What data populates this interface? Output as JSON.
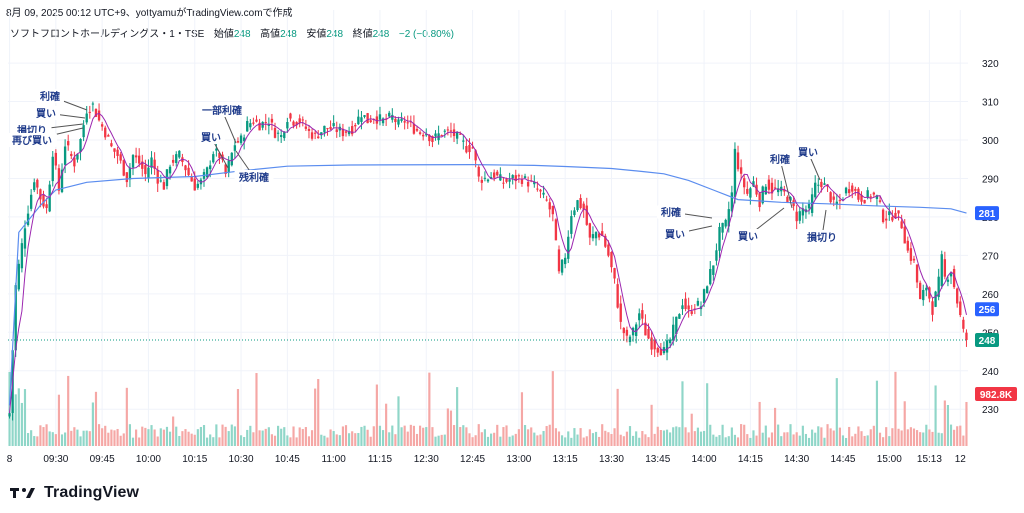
{
  "header": {
    "caption": "8月 09, 2025 00:12 UTC+9、yottyamuがTradingView.comで作成"
  },
  "legend": {
    "symbol": "ソフトフロントホールディングス・1・TSE",
    "open_label": "始値",
    "open": "248",
    "high_label": "高値",
    "high": "248",
    "low_label": "安値",
    "low": "248",
    "close_label": "終値",
    "close": "248",
    "change": "−2 (−0.80%)"
  },
  "brand": {
    "name": "TradingView"
  },
  "chart_data": {
    "type": "candlestick",
    "ylim": [
      222,
      326
    ],
    "y_ticks": [
      230,
      240,
      250,
      260,
      270,
      280,
      290,
      300,
      310,
      320
    ],
    "x_ticks": [
      {
        "i": 0,
        "label": "8"
      },
      {
        "i": 15,
        "label": "09:30"
      },
      {
        "i": 30,
        "label": "09:45"
      },
      {
        "i": 45,
        "label": "10:00"
      },
      {
        "i": 60,
        "label": "10:15"
      },
      {
        "i": 75,
        "label": "10:30"
      },
      {
        "i": 90,
        "label": "10:45"
      },
      {
        "i": 105,
        "label": "11:00"
      },
      {
        "i": 120,
        "label": "11:15"
      },
      {
        "i": 135,
        "label": "12:30"
      },
      {
        "i": 150,
        "label": "12:45"
      },
      {
        "i": 165,
        "label": "13:00"
      },
      {
        "i": 180,
        "label": "13:15"
      },
      {
        "i": 195,
        "label": "13:30"
      },
      {
        "i": 210,
        "label": "13:45"
      },
      {
        "i": 225,
        "label": "14:00"
      },
      {
        "i": 240,
        "label": "14:15"
      },
      {
        "i": 255,
        "label": "14:30"
      },
      {
        "i": 270,
        "label": "14:45"
      },
      {
        "i": 285,
        "label": "15:00"
      },
      {
        "i": 298,
        "label": "15:13"
      },
      {
        "i": 308,
        "label": "12"
      }
    ],
    "closes_key": [
      [
        0,
        229
      ],
      [
        2,
        262
      ],
      [
        5,
        278
      ],
      [
        8,
        290
      ],
      [
        10,
        285
      ],
      [
        12,
        282
      ],
      [
        14,
        297
      ],
      [
        16,
        287
      ],
      [
        18,
        299
      ],
      [
        21,
        294
      ],
      [
        23,
        300
      ],
      [
        25,
        308
      ],
      [
        27,
        309
      ],
      [
        29,
        305
      ],
      [
        31,
        302
      ],
      [
        33,
        298
      ],
      [
        35,
        296
      ],
      [
        38,
        290
      ],
      [
        40,
        296
      ],
      [
        42,
        294
      ],
      [
        44,
        291
      ],
      [
        46,
        295
      ],
      [
        48,
        290
      ],
      [
        50,
        288
      ],
      [
        52,
        294
      ],
      [
        55,
        296
      ],
      [
        58,
        291
      ],
      [
        60,
        288
      ],
      [
        62,
        289
      ],
      [
        64,
        292
      ],
      [
        66,
        297
      ],
      [
        68,
        296
      ],
      [
        70,
        291
      ],
      [
        73,
        299
      ],
      [
        75,
        300
      ],
      [
        77,
        304
      ],
      [
        79,
        305
      ],
      [
        81,
        304
      ],
      [
        84,
        305
      ],
      [
        86,
        302
      ],
      [
        88,
        301
      ],
      [
        90,
        306
      ],
      [
        92,
        305
      ],
      [
        94,
        305
      ],
      [
        97,
        302
      ],
      [
        99,
        301
      ],
      [
        102,
        303
      ],
      [
        105,
        303
      ],
      [
        108,
        302
      ],
      [
        111,
        303
      ],
      [
        114,
        307
      ],
      [
        116,
        305
      ],
      [
        118,
        306
      ],
      [
        121,
        305
      ],
      [
        124,
        306
      ],
      [
        126,
        304
      ],
      [
        128,
        305
      ],
      [
        131,
        303
      ],
      [
        133,
        302
      ],
      [
        135,
        302
      ],
      [
        137,
        300
      ],
      [
        140,
        302
      ],
      [
        143,
        302
      ],
      [
        146,
        300
      ],
      [
        148,
        298
      ],
      [
        150,
        298
      ],
      [
        152,
        290
      ],
      [
        154,
        290
      ],
      [
        157,
        291
      ],
      [
        160,
        289
      ],
      [
        163,
        290
      ],
      [
        166,
        290
      ],
      [
        168,
        289
      ],
      [
        170,
        288
      ],
      [
        172,
        286
      ],
      [
        174,
        284
      ],
      [
        176,
        280
      ],
      [
        178,
        265
      ],
      [
        180,
        270
      ],
      [
        182,
        281
      ],
      [
        184,
        284
      ],
      [
        186,
        282
      ],
      [
        188,
        274
      ],
      [
        190,
        276
      ],
      [
        192,
        275
      ],
      [
        194,
        270
      ],
      [
        196,
        263
      ],
      [
        198,
        252
      ],
      [
        200,
        248
      ],
      [
        202,
        250
      ],
      [
        204,
        255
      ],
      [
        206,
        250
      ],
      [
        208,
        247
      ],
      [
        210,
        246
      ],
      [
        212,
        245
      ],
      [
        214,
        248
      ],
      [
        216,
        253
      ],
      [
        218,
        258
      ],
      [
        220,
        255
      ],
      [
        222,
        257
      ],
      [
        224,
        257
      ],
      [
        226,
        263
      ],
      [
        228,
        268
      ],
      [
        230,
        276
      ],
      [
        232,
        278
      ],
      [
        234,
        286
      ],
      [
        235,
        297
      ],
      [
        237,
        290
      ],
      [
        239,
        286
      ],
      [
        241,
        289
      ],
      [
        243,
        284
      ],
      [
        245,
        289
      ],
      [
        247,
        287
      ],
      [
        249,
        287
      ],
      [
        251,
        286
      ],
      [
        253,
        284
      ],
      [
        255,
        280
      ],
      [
        257,
        282
      ],
      [
        259,
        282
      ],
      [
        261,
        288
      ],
      [
        263,
        289
      ],
      [
        265,
        287
      ],
      [
        267,
        283
      ],
      [
        269,
        284
      ],
      [
        271,
        287
      ],
      [
        273,
        288
      ],
      [
        275,
        285
      ],
      [
        277,
        285
      ],
      [
        279,
        286
      ],
      [
        281,
        285
      ],
      [
        283,
        280
      ],
      [
        285,
        280
      ],
      [
        287,
        281
      ],
      [
        289,
        278
      ],
      [
        291,
        271
      ],
      [
        293,
        268
      ],
      [
        295,
        258
      ],
      [
        297,
        262
      ],
      [
        299,
        256
      ],
      [
        301,
        263
      ],
      [
        302,
        269
      ],
      [
        303,
        264
      ],
      [
        305,
        266
      ],
      [
        307,
        258
      ],
      [
        309,
        250
      ],
      [
        310,
        248
      ]
    ],
    "indicators": {
      "vwap": {
        "color": "#5b8def",
        "points": [
          [
            0,
            231
          ],
          [
            3,
            276
          ],
          [
            10,
            283
          ],
          [
            15,
            287
          ],
          [
            25,
            289
          ],
          [
            40,
            290
          ],
          [
            60,
            290.5
          ],
          [
            75,
            292
          ],
          [
            90,
            293.2
          ],
          [
            110,
            293.5
          ],
          [
            150,
            293.6
          ],
          [
            170,
            293.4
          ],
          [
            180,
            293.1
          ],
          [
            195,
            292.6
          ],
          [
            205,
            291.8
          ],
          [
            212,
            291.2
          ],
          [
            220,
            289.5
          ],
          [
            228,
            287
          ],
          [
            236,
            284.5
          ],
          [
            250,
            283.8
          ],
          [
            265,
            283.4
          ],
          [
            280,
            282.9
          ],
          [
            295,
            282.5
          ],
          [
            305,
            282.1
          ],
          [
            310,
            281
          ]
        ]
      },
      "ma": {
        "color": "#9c27b0",
        "period": 5
      }
    },
    "price_labels": [
      {
        "value": 281,
        "text": "281",
        "color": "#2962ff"
      },
      {
        "value": 256,
        "text": "256",
        "color": "#2962ff"
      },
      {
        "value": 248,
        "text": "248",
        "color": "#089981"
      }
    ],
    "volume": {
      "last": "982.8K",
      "color_up": "#8fd6c8",
      "color_down": "#f5a7a5",
      "label_color": "#f23645"
    },
    "annotations": [
      {
        "text": "利確",
        "bx": 50,
        "by": 96,
        "tx": 87,
        "ty": 110
      },
      {
        "text": "買い",
        "bx": 46,
        "by": 113,
        "tx": 85,
        "ty": 118
      },
      {
        "text": "損切り",
        "bx": 32,
        "by": 130,
        "tx": 83,
        "ty": 124
      },
      {
        "text": "再び買い",
        "bx": 32,
        "by": 140,
        "tx": 83,
        "ty": 128
      },
      {
        "text": "一部利確",
        "bx": 222,
        "by": 110,
        "tx": 236,
        "ty": 143
      },
      {
        "text": "買い",
        "bx": 211,
        "by": 137,
        "tx": 228,
        "ty": 168
      },
      {
        "text": "残利確",
        "bx": 254,
        "by": 177,
        "tx": 236,
        "ty": 151
      },
      {
        "text": "利確",
        "bx": 671,
        "by": 212,
        "tx": 712,
        "ty": 218
      },
      {
        "text": "買い",
        "bx": 675,
        "by": 234,
        "tx": 712,
        "ty": 226
      },
      {
        "text": "買い",
        "bx": 748,
        "by": 236,
        "tx": 784,
        "ty": 208
      },
      {
        "text": "利確",
        "bx": 780,
        "by": 159,
        "tx": 792,
        "ty": 208
      },
      {
        "text": "買い",
        "bx": 808,
        "by": 152,
        "tx": 820,
        "ty": 180
      },
      {
        "text": "損切り",
        "bx": 822,
        "by": 237,
        "tx": 826,
        "ty": 210
      }
    ]
  }
}
